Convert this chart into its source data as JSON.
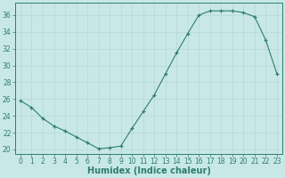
{
  "x": [
    0,
    1,
    2,
    3,
    4,
    5,
    6,
    7,
    8,
    9,
    10,
    11,
    12,
    13,
    14,
    15,
    16,
    17,
    18,
    19,
    20,
    21,
    22,
    23
  ],
  "y": [
    25.8,
    25.0,
    23.7,
    22.8,
    22.2,
    21.5,
    20.8,
    20.1,
    20.2,
    20.4,
    22.5,
    24.5,
    26.5,
    29.0,
    31.5,
    33.8,
    36.0,
    36.5,
    36.5,
    36.5,
    36.3,
    35.8,
    33.0,
    29.0
  ],
  "xlabel": "Humidex (Indice chaleur)",
  "ylabel": "",
  "xlim": [
    -0.5,
    23.5
  ],
  "ylim": [
    19.5,
    37.5
  ],
  "yticks": [
    20,
    22,
    24,
    26,
    28,
    30,
    32,
    34,
    36
  ],
  "xticks": [
    0,
    1,
    2,
    3,
    4,
    5,
    6,
    7,
    8,
    9,
    10,
    11,
    12,
    13,
    14,
    15,
    16,
    17,
    18,
    19,
    20,
    21,
    22,
    23
  ],
  "line_color": "#2e7d6e",
  "marker": "+",
  "bg_color": "#c8e8e8",
  "grid_color": "#b8d8d8",
  "axis_color": "#2e7d6e",
  "tick_color": "#2e7d6e",
  "label_color": "#2e7d6e"
}
